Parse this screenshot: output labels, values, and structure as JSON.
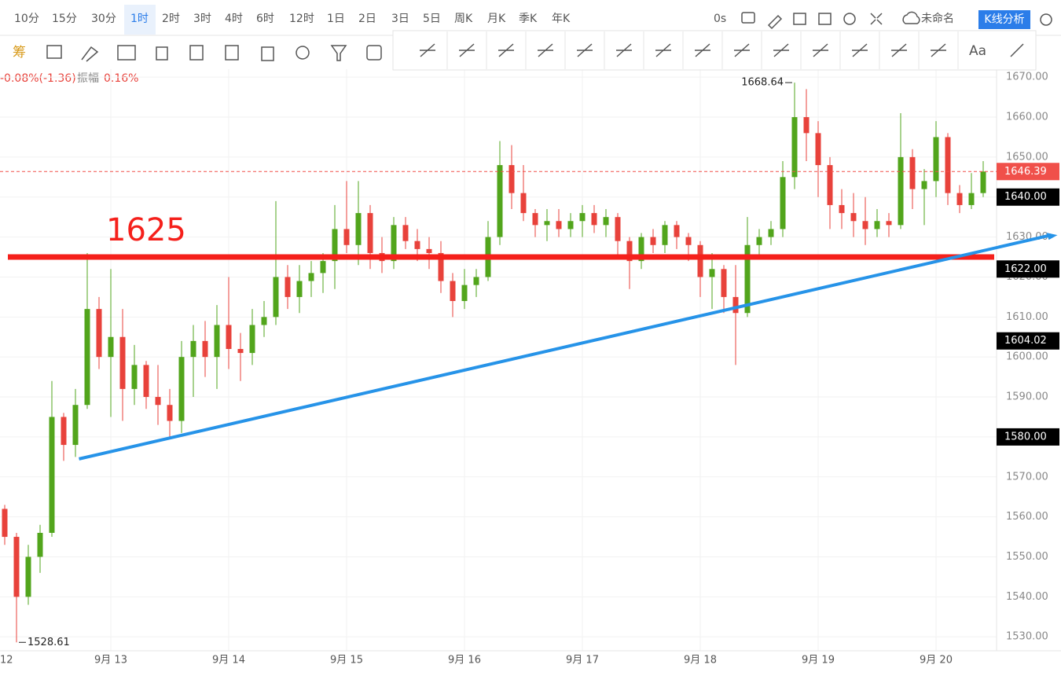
{
  "toolbar": {
    "intervals": [
      "10分",
      "15分",
      "30分",
      "1时",
      "2时",
      "3时",
      "4时",
      "6时",
      "12时",
      "1日",
      "2日",
      "3日",
      "5日",
      "周K",
      "月K",
      "季K",
      "年K"
    ],
    "active_interval": "1时",
    "timer": "0s",
    "layout_name": "未命名",
    "analysis_button": "K线分析",
    "chip_tool": "筹",
    "text_tool": "Aa"
  },
  "info": {
    "change": "-0.08%(-1.36)",
    "amplitude_label": "振幅",
    "amplitude": "0.16%"
  },
  "chart_data": {
    "type": "candlestick",
    "categories": [
      "12",
      null,
      null,
      null,
      null,
      null,
      null,
      null,
      null,
      "9月 13",
      null,
      null,
      null,
      null,
      null,
      null,
      null,
      null,
      null,
      "9月 14",
      null,
      null,
      null,
      null,
      null,
      null,
      null,
      null,
      null,
      "9月 15",
      null,
      null,
      null,
      null,
      null,
      null,
      null,
      null,
      null,
      "9月 16",
      null,
      null,
      null,
      null,
      null,
      null,
      null,
      null,
      null,
      "9月 17",
      null,
      null,
      null,
      null,
      null,
      null,
      null,
      null,
      null,
      "9月 18",
      null,
      null,
      null,
      null,
      null,
      null,
      null,
      null,
      null,
      "9月 19",
      null,
      null,
      null,
      null,
      null,
      null,
      null,
      null,
      null,
      "9月 20",
      null,
      null,
      null,
      null
    ],
    "open": [
      1562,
      1555,
      1540,
      1550,
      1556,
      1585,
      1578,
      1588,
      1612,
      1600,
      1605,
      1592,
      1598,
      1590,
      1588,
      1584,
      1600,
      1604,
      1600,
      1608,
      1602,
      1601,
      1608,
      1610,
      1620,
      1615,
      1619,
      1621,
      1624,
      1632,
      1628,
      1636,
      1626,
      1624,
      1633,
      1629,
      1627,
      1626,
      1619,
      1614,
      1618,
      1620,
      1630,
      1648,
      1641,
      1636,
      1633,
      1634,
      1632,
      1634,
      1636,
      1633,
      1635,
      1629,
      1624,
      1630,
      1628,
      1633,
      1630,
      1628,
      1620,
      1622,
      1615,
      1611,
      1628,
      1630,
      1632,
      1645,
      1660,
      1656,
      1648,
      1638,
      1636,
      1634,
      1632,
      1634,
      1633,
      1650,
      1642,
      1644,
      1655,
      1641,
      1638,
      1641
    ],
    "high": [
      1563,
      1556,
      1553,
      1558,
      1594,
      1586,
      1592,
      1626,
      1615,
      1622,
      1612,
      1603,
      1599,
      1598,
      1592,
      1604,
      1608,
      1609,
      1613,
      1620,
      1606,
      1612,
      1614,
      1639,
      1623,
      1623,
      1624,
      1626,
      1638,
      1644,
      1644,
      1638,
      1630,
      1635,
      1635,
      1632,
      1630,
      1629,
      1621,
      1622,
      1622,
      1634,
      1654,
      1653,
      1648,
      1637,
      1637,
      1637,
      1636,
      1638,
      1638,
      1637,
      1636,
      1630,
      1631,
      1632,
      1634,
      1634,
      1631,
      1629,
      1626,
      1623,
      1623,
      1635,
      1632,
      1634,
      1649,
      1668.64,
      1667,
      1659,
      1650,
      1642,
      1641,
      1640,
      1637,
      1636,
      1661,
      1652,
      1647,
      1659,
      1656,
      1643,
      1646,
      1649
    ],
    "low": [
      1553,
      1528.61,
      1538,
      1546,
      1555,
      1574,
      1575,
      1587,
      1597,
      1585,
      1584,
      1588,
      1587,
      1583,
      1580,
      1581,
      1590,
      1595,
      1592,
      1597,
      1594,
      1598,
      1605,
      1608,
      1612,
      1611,
      1615,
      1616,
      1617,
      1626,
      1623,
      1622,
      1621,
      1622,
      1627,
      1624,
      1622,
      1616,
      1610,
      1612,
      1615,
      1619,
      1628,
      1637,
      1634,
      1630,
      1629,
      1630,
      1630,
      1630,
      1631,
      1630,
      1625,
      1617,
      1622,
      1626,
      1626,
      1627,
      1624,
      1615,
      1612,
      1611,
      1598,
      1610,
      1625,
      1628,
      1630,
      1642,
      1649,
      1640,
      1632,
      1632,
      1630,
      1628,
      1630,
      1630,
      1632,
      1637,
      1633,
      1640,
      1638,
      1636,
      1637,
      1640
    ],
    "close": [
      1555,
      1540,
      1550,
      1556,
      1585,
      1578,
      1588,
      1612,
      1600,
      1605,
      1592,
      1598,
      1590,
      1588,
      1584,
      1600,
      1604,
      1600,
      1608,
      1602,
      1601,
      1608,
      1610,
      1620,
      1615,
      1619,
      1621,
      1624,
      1632,
      1628,
      1636,
      1626,
      1624,
      1633,
      1629,
      1627,
      1626,
      1619,
      1614,
      1618,
      1620,
      1630,
      1648,
      1641,
      1636,
      1633,
      1634,
      1632,
      1634,
      1636,
      1633,
      1635,
      1629,
      1624,
      1630,
      1628,
      1633,
      1630,
      1628,
      1620,
      1622,
      1615,
      1611,
      1628,
      1630,
      1632,
      1645,
      1660,
      1656,
      1648,
      1638,
      1636,
      1634,
      1632,
      1634,
      1633,
      1650,
      1642,
      1644,
      1655,
      1641,
      1638,
      1641,
      1646.39
    ],
    "up_color": "#52a51c",
    "down_color": "#e8423b",
    "ylim": [
      1526.5,
      1672
    ],
    "yticks": [
      {
        "value": 1530,
        "label": "1530.00"
      },
      {
        "value": 1540,
        "label": "1540.00"
      },
      {
        "value": 1550,
        "label": "1550.00"
      },
      {
        "value": 1560,
        "label": "1560.00"
      },
      {
        "value": 1570,
        "label": "1570.00"
      },
      {
        "value": 1580,
        "label": "1580.00"
      },
      {
        "value": 1590,
        "label": "1590.00"
      },
      {
        "value": 1600,
        "label": "1600.00"
      },
      {
        "value": 1610,
        "label": "1610.00"
      },
      {
        "value": 1620,
        "label": "1620.00"
      },
      {
        "value": 1630,
        "label": "1630.00"
      },
      {
        "value": 1640,
        "label": "1640.00"
      },
      {
        "value": 1650,
        "label": "1650.00"
      },
      {
        "value": 1660,
        "label": "1660.00"
      },
      {
        "value": 1670,
        "label": "1670.00"
      }
    ],
    "grid": true,
    "high_label": {
      "value": 1668.64,
      "label": "1668.64"
    },
    "low_label": {
      "value": 1528.61,
      "label": "1528.61"
    },
    "last_price": {
      "value": 1646.39,
      "label": "1646.39",
      "color": "#f0504a"
    },
    "price_tags": [
      {
        "value": 1640,
        "label": "1640.00"
      },
      {
        "value": 1622,
        "label": "1622.00"
      },
      {
        "value": 1604.02,
        "label": "1604.02"
      },
      {
        "value": 1580,
        "label": "1580.00"
      }
    ],
    "hline": {
      "value": 1625,
      "label": "1625",
      "color": "#f5201b"
    },
    "trendline": {
      "x": [
        6.3,
        89.3
      ],
      "y": [
        1574.5,
        1630.5
      ],
      "color": "#2693e8"
    }
  }
}
